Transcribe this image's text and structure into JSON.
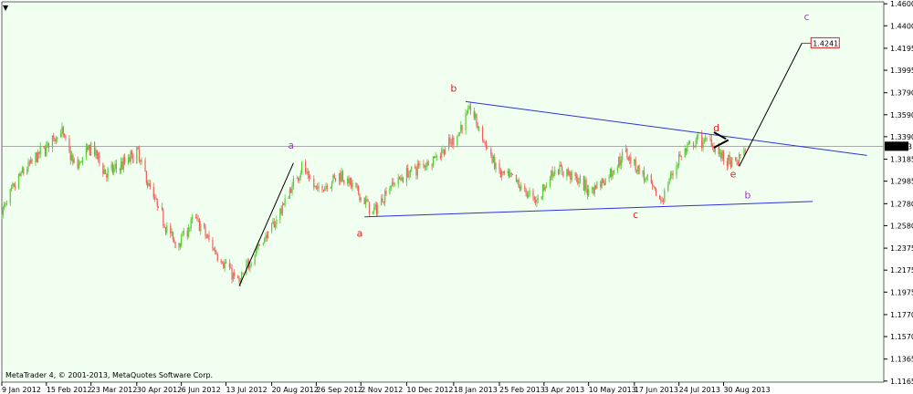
{
  "window": {
    "menu_glyph": "▼",
    "copyright": "MetaTrader 4, © 2001-2013, MetaQuotes Software Corp."
  },
  "colors": {
    "background": "#ffffff",
    "chart_bg": "#f0fff0",
    "grid": "#c8c8c8",
    "bull": "#5aca35",
    "bear": "#f06060",
    "trendline": "#3030e0",
    "wave_red": "#e02020",
    "wave_purple": "#a040c0",
    "wave_line": "#000000",
    "price_line": "#909090"
  },
  "chart_data": {
    "type": "line",
    "subtype": "candlestick",
    "instrument_note": "",
    "ylim": [
      1.1155,
      1.4618
    ],
    "x_range": [
      "2012-01-09",
      "2014-01-10"
    ],
    "y_ticks": [
      "1.4600",
      "1.4400",
      "1.4195",
      "1.3995",
      "1.3790",
      "1.3590",
      "1.3390",
      "1.3185",
      "1.2985",
      "1.2780",
      "1.2580",
      "1.2375",
      "1.2175",
      "1.1975",
      "1.1770",
      "1.1570",
      "1.1365",
      "1.1165"
    ],
    "x_ticks": [
      {
        "label": "9 Jan 2012",
        "date": "2012-01-09"
      },
      {
        "label": "15 Feb 2012",
        "date": "2012-02-15"
      },
      {
        "label": "23 Mar 2012",
        "date": "2012-03-23"
      },
      {
        "label": "30 Apr 2012",
        "date": "2012-04-30"
      },
      {
        "label": "6 Jun 2012",
        "date": "2012-06-06"
      },
      {
        "label": "13 Jul 2012",
        "date": "2012-07-13"
      },
      {
        "label": "20 Aug 2012",
        "date": "2012-08-20"
      },
      {
        "label": "26 Sep 2012",
        "date": "2012-09-26"
      },
      {
        "label": "2 Nov 2012",
        "date": "2012-11-02"
      },
      {
        "label": "10 Dec 2012",
        "date": "2012-12-10"
      },
      {
        "label": "18 Jan 2013",
        "date": "2013-01-18"
      },
      {
        "label": "25 Feb 2013",
        "date": "2013-02-25"
      },
      {
        "label": "3 Apr 2013",
        "date": "2013-04-03"
      },
      {
        "label": "10 May 2013",
        "date": "2013-05-10"
      },
      {
        "label": "17 Jun 2013",
        "date": "2013-06-17"
      },
      {
        "label": "24 Jul 2013",
        "date": "2013-07-24"
      },
      {
        "label": "30 Aug 2013",
        "date": "2013-08-30"
      }
    ],
    "current_price": {
      "label": "1.3303",
      "value": 1.3303
    },
    "target_price": {
      "label": "1.4241",
      "value": 1.4241
    },
    "price_path": [
      {
        "date": "2012-01-09",
        "value": 1.27
      },
      {
        "date": "2012-01-25",
        "value": 1.305
      },
      {
        "date": "2012-02-15",
        "value": 1.33
      },
      {
        "date": "2012-02-27",
        "value": 1.345
      },
      {
        "date": "2012-03-10",
        "value": 1.31
      },
      {
        "date": "2012-03-23",
        "value": 1.33
      },
      {
        "date": "2012-04-05",
        "value": 1.305
      },
      {
        "date": "2012-04-20",
        "value": 1.315
      },
      {
        "date": "2012-04-30",
        "value": 1.325
      },
      {
        "date": "2012-05-15",
        "value": 1.28
      },
      {
        "date": "2012-06-01",
        "value": 1.24
      },
      {
        "date": "2012-06-18",
        "value": 1.265
      },
      {
        "date": "2012-07-01",
        "value": 1.24
      },
      {
        "date": "2012-07-24",
        "value": 1.205
      },
      {
        "date": "2012-08-06",
        "value": 1.235
      },
      {
        "date": "2012-08-20",
        "value": 1.255
      },
      {
        "date": "2012-09-14",
        "value": 1.312
      },
      {
        "date": "2012-09-26",
        "value": 1.29
      },
      {
        "date": "2012-10-17",
        "value": 1.305
      },
      {
        "date": "2012-11-13",
        "value": 1.27
      },
      {
        "date": "2012-11-26",
        "value": 1.295
      },
      {
        "date": "2012-12-10",
        "value": 1.305
      },
      {
        "date": "2013-01-02",
        "value": 1.32
      },
      {
        "date": "2013-01-18",
        "value": 1.335
      },
      {
        "date": "2013-02-01",
        "value": 1.365
      },
      {
        "date": "2013-02-14",
        "value": 1.33
      },
      {
        "date": "2013-02-25",
        "value": 1.305
      },
      {
        "date": "2013-03-08",
        "value": 1.3
      },
      {
        "date": "2013-03-27",
        "value": 1.28
      },
      {
        "date": "2013-04-12",
        "value": 1.31
      },
      {
        "date": "2013-04-25",
        "value": 1.305
      },
      {
        "date": "2013-05-10",
        "value": 1.29
      },
      {
        "date": "2013-05-24",
        "value": 1.3
      },
      {
        "date": "2013-06-10",
        "value": 1.325
      },
      {
        "date": "2013-06-20",
        "value": 1.31
      },
      {
        "date": "2013-07-09",
        "value": 1.28
      },
      {
        "date": "2013-07-24",
        "value": 1.32
      },
      {
        "date": "2013-08-08",
        "value": 1.335
      },
      {
        "date": "2013-08-20",
        "value": 1.335
      },
      {
        "date": "2013-08-30",
        "value": 1.318
      },
      {
        "date": "2013-09-09",
        "value": 1.312
      },
      {
        "date": "2013-09-17",
        "value": 1.33
      }
    ],
    "trendlines": [
      {
        "name": "upper",
        "color": "#3030e0",
        "from": {
          "date": "2013-01-28",
          "value": 1.371
        },
        "to": {
          "date": "2013-12-27",
          "value": 1.322
        }
      },
      {
        "name": "lower",
        "color": "#3030e0",
        "from": {
          "date": "2012-11-05",
          "value": 1.266
        },
        "to": {
          "date": "2013-11-12",
          "value": 1.28
        }
      }
    ],
    "wave_lines": [
      {
        "from": {
          "date": "2012-07-24",
          "value": 1.203
        },
        "to": {
          "date": "2012-09-07",
          "value": 1.315
        }
      },
      {
        "from": {
          "date": "2013-09-12",
          "value": 1.312
        },
        "to": {
          "date": "2013-11-03",
          "value": 1.4241
        }
      }
    ],
    "arrows": [
      {
        "from": {
          "date": "2013-08-22",
          "value": 1.343
        },
        "to": {
          "date": "2013-09-01",
          "value": 1.337
        }
      },
      {
        "from": {
          "date": "2013-08-22",
          "value": 1.329
        },
        "to": {
          "date": "2013-09-03",
          "value": 1.336
        }
      }
    ],
    "wave_labels": [
      {
        "text": "a",
        "color": "#a040c0",
        "date": "2012-09-05",
        "value": 1.328
      },
      {
        "text": "a",
        "color": "#e02020",
        "date": "2012-11-01",
        "value": 1.248
      },
      {
        "text": "b",
        "color": "#e02020",
        "date": "2013-01-18",
        "value": 1.38
      },
      {
        "text": "c",
        "color": "#e02020",
        "date": "2013-06-18",
        "value": 1.265
      },
      {
        "text": "d",
        "color": "#e02020",
        "date": "2013-08-24",
        "value": 1.344
      },
      {
        "text": "e",
        "color": "#e02020",
        "date": "2013-09-07",
        "value": 1.302
      },
      {
        "text": "b",
        "color": "#a040c0",
        "date": "2013-09-19",
        "value": 1.283
      },
      {
        "text": "c",
        "color": "#a040c0",
        "date": "2013-11-07",
        "value": 1.445
      }
    ]
  }
}
